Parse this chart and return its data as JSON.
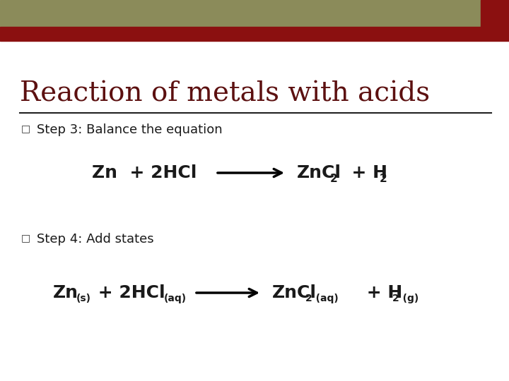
{
  "title": "Reaction of metals with acids",
  "title_color": "#5C1010",
  "title_fontsize": 28,
  "background_color": "#FFFFFF",
  "header_olive_color": "#8B8B5A",
  "header_red_color": "#8B1010",
  "bullet_color": "#333333",
  "text_color": "#1A1A1A",
  "step3_label": "Step 3: Balance the equation",
  "step4_label": "Step 4: Add states",
  "label_fontsize": 13,
  "eq_fontsize": 16,
  "sub_fontsize": 11
}
